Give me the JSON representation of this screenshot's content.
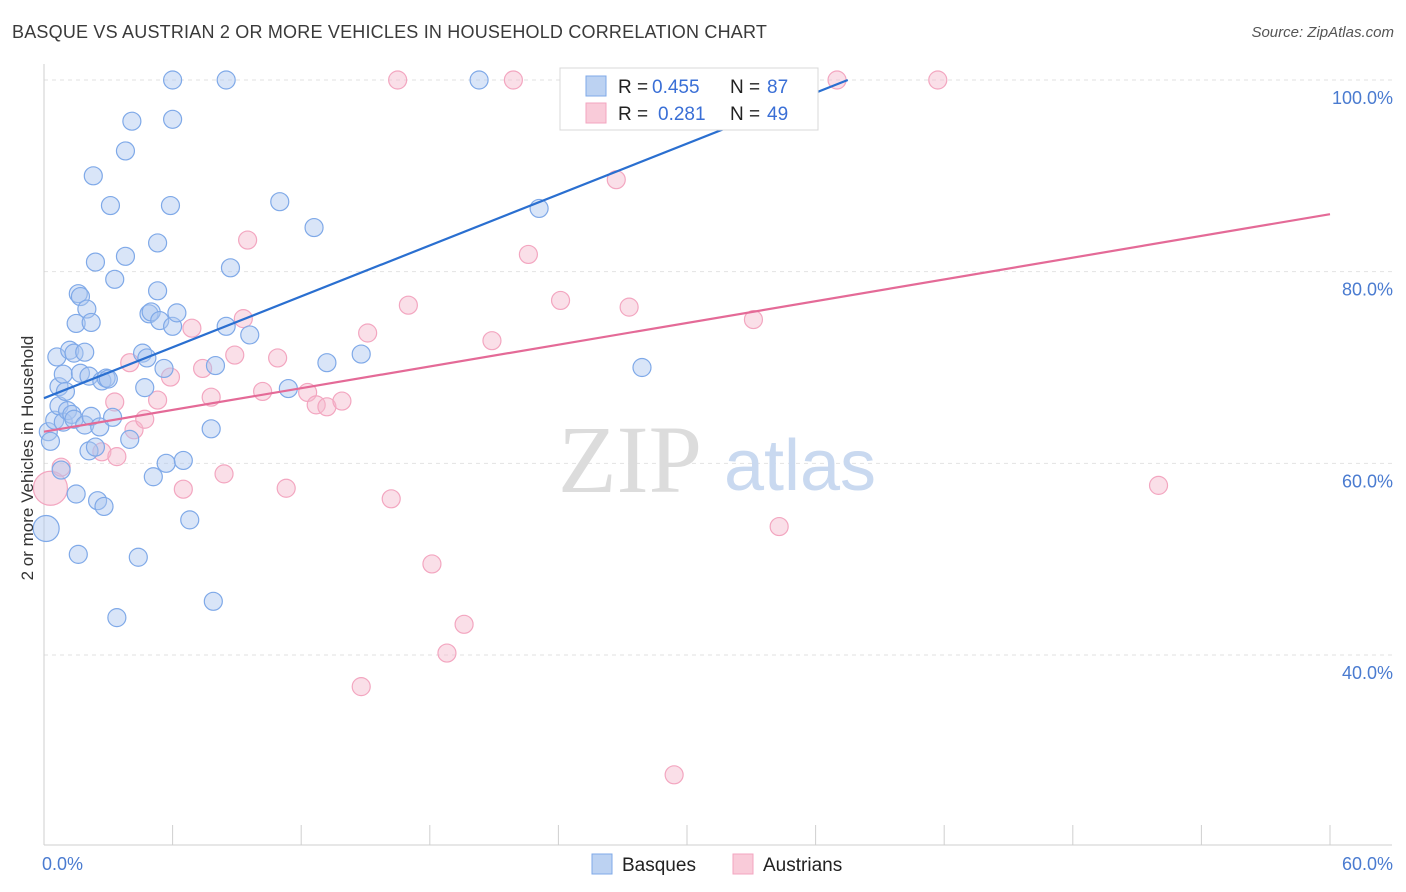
{
  "title": "BASQUE VS AUSTRIAN 2 OR MORE VEHICLES IN HOUSEHOLD CORRELATION CHART",
  "source": "Source: ZipAtlas.com",
  "watermark": {
    "zip": "ZIP",
    "atlas": "atlas"
  },
  "chart_data": {
    "type": "scatter",
    "title": "BASQUE VS AUSTRIAN 2 OR MORE VEHICLES IN HOUSEHOLD CORRELATION CHART",
    "xlabel": "",
    "ylabel": "2 or more Vehicles in Household",
    "xlim": [
      0,
      60
    ],
    "ylim": [
      20,
      104
    ],
    "x_tick_labels": [
      {
        "value": 0,
        "label": "0.0%"
      },
      {
        "value": 60,
        "label": "60.0%"
      }
    ],
    "y_tick_labels": [
      {
        "value": 100,
        "label": "100.0%"
      },
      {
        "value": 80,
        "label": "80.0%"
      },
      {
        "value": 60,
        "label": "60.0%"
      },
      {
        "value": 40,
        "label": "40.0%"
      }
    ],
    "grid": true,
    "legend_placement": "top-center",
    "series": [
      {
        "name": "Basques",
        "color": "#7fa9e8",
        "line_color": "#2a6fd0",
        "R": "0.455",
        "N": "87",
        "trend": {
          "x": [
            0,
            37.5
          ],
          "y": [
            66.8,
            100
          ]
        },
        "points": [
          [
            0.1,
            53.2
          ],
          [
            0.2,
            63.3
          ],
          [
            0.3,
            62.3
          ],
          [
            0.5,
            64.5
          ],
          [
            0.6,
            71.1
          ],
          [
            0.7,
            68.0
          ],
          [
            0.7,
            66.0
          ],
          [
            0.8,
            59.3
          ],
          [
            0.9,
            64.3
          ],
          [
            0.9,
            69.3
          ],
          [
            1.0,
            67.5
          ],
          [
            1.1,
            65.5
          ],
          [
            1.2,
            71.8
          ],
          [
            1.3,
            65.1
          ],
          [
            1.4,
            71.5
          ],
          [
            1.4,
            64.6
          ],
          [
            1.5,
            74.6
          ],
          [
            1.5,
            56.8
          ],
          [
            1.6,
            77.7
          ],
          [
            1.6,
            50.5
          ],
          [
            1.7,
            77.4
          ],
          [
            1.7,
            69.4
          ],
          [
            1.9,
            71.6
          ],
          [
            1.9,
            64.0
          ],
          [
            2.0,
            76.1
          ],
          [
            2.1,
            61.3
          ],
          [
            2.1,
            69.1
          ],
          [
            2.2,
            64.9
          ],
          [
            2.2,
            74.7
          ],
          [
            2.3,
            90.0
          ],
          [
            2.4,
            61.7
          ],
          [
            2.4,
            81.0
          ],
          [
            2.5,
            56.1
          ],
          [
            2.6,
            63.8
          ],
          [
            2.7,
            68.6
          ],
          [
            2.8,
            55.5
          ],
          [
            2.9,
            68.9
          ],
          [
            3.0,
            68.8
          ],
          [
            3.1,
            86.9
          ],
          [
            3.2,
            64.8
          ],
          [
            3.3,
            79.2
          ],
          [
            3.4,
            43.9
          ],
          [
            3.8,
            92.6
          ],
          [
            3.8,
            81.6
          ],
          [
            4.0,
            62.5
          ],
          [
            4.1,
            95.7
          ],
          [
            4.4,
            50.2
          ],
          [
            4.6,
            71.5
          ],
          [
            4.7,
            67.9
          ],
          [
            4.8,
            71.0
          ],
          [
            4.9,
            75.6
          ],
          [
            5.0,
            75.8
          ],
          [
            5.1,
            58.6
          ],
          [
            5.3,
            78.0
          ],
          [
            5.3,
            83.0
          ],
          [
            5.4,
            74.9
          ],
          [
            5.6,
            69.9
          ],
          [
            5.7,
            60.0
          ],
          [
            5.9,
            86.9
          ],
          [
            6.0,
            74.3
          ],
          [
            6.0,
            95.9
          ],
          [
            6.0,
            100.0
          ],
          [
            6.2,
            75.7
          ],
          [
            6.5,
            60.3
          ],
          [
            6.8,
            54.1
          ],
          [
            7.8,
            63.6
          ],
          [
            7.9,
            45.6
          ],
          [
            8.0,
            70.2
          ],
          [
            8.5,
            100.0
          ],
          [
            8.5,
            74.3
          ],
          [
            8.7,
            80.4
          ],
          [
            9.6,
            73.4
          ],
          [
            11.0,
            87.3
          ],
          [
            11.4,
            67.8
          ],
          [
            12.6,
            84.6
          ],
          [
            13.2,
            70.5
          ],
          [
            14.8,
            71.4
          ],
          [
            20.3,
            100.0
          ],
          [
            23.1,
            86.6
          ],
          [
            27.9,
            70.0
          ],
          [
            33.0,
            98.2
          ],
          [
            35.0,
            100.0
          ]
        ]
      },
      {
        "name": "Austrians",
        "color": "#f3a6c0",
        "line_color": "#e46a97",
        "R": "0.281",
        "N": "49",
        "trend": {
          "x": [
            0,
            60
          ],
          "y": [
            63.3,
            86.0
          ]
        },
        "points": [
          [
            0.3,
            57.4
          ],
          [
            0.8,
            59.6
          ],
          [
            2.7,
            61.2
          ],
          [
            3.3,
            66.4
          ],
          [
            3.4,
            60.7
          ],
          [
            4.0,
            70.5
          ],
          [
            4.2,
            63.5
          ],
          [
            4.7,
            64.6
          ],
          [
            5.3,
            66.6
          ],
          [
            5.9,
            69.0
          ],
          [
            6.5,
            57.3
          ],
          [
            6.9,
            74.1
          ],
          [
            7.4,
            69.9
          ],
          [
            7.8,
            66.9
          ],
          [
            8.4,
            58.9
          ],
          [
            8.9,
            71.3
          ],
          [
            9.3,
            75.1
          ],
          [
            9.5,
            83.3
          ],
          [
            10.2,
            67.5
          ],
          [
            10.9,
            71.0
          ],
          [
            11.3,
            57.4
          ],
          [
            12.3,
            67.4
          ],
          [
            12.7,
            66.1
          ],
          [
            13.2,
            65.9
          ],
          [
            13.9,
            66.5
          ],
          [
            14.8,
            36.7
          ],
          [
            15.1,
            73.6
          ],
          [
            16.2,
            56.3
          ],
          [
            16.5,
            100.0
          ],
          [
            17.0,
            76.5
          ],
          [
            18.1,
            49.5
          ],
          [
            18.8,
            40.2
          ],
          [
            19.6,
            43.2
          ],
          [
            20.9,
            72.8
          ],
          [
            21.9,
            100.0
          ],
          [
            22.6,
            81.8
          ],
          [
            24.1,
            77.0
          ],
          [
            26.7,
            89.6
          ],
          [
            27.3,
            76.3
          ],
          [
            29.4,
            27.5
          ],
          [
            33.1,
            75.0
          ],
          [
            34.3,
            53.4
          ],
          [
            37.0,
            100.0
          ],
          [
            41.7,
            100.0
          ],
          [
            52.0,
            57.7
          ]
        ]
      }
    ]
  }
}
